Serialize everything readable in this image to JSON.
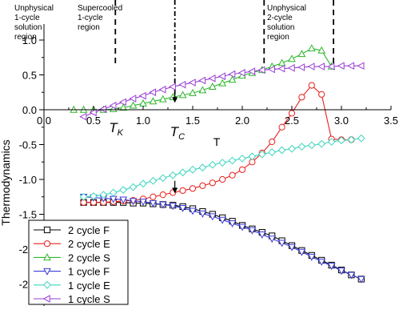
{
  "chart_data": {
    "type": "line",
    "xlabel": "T",
    "ylabel": "Thermodynamics",
    "xlim": [
      0.0,
      3.5
    ],
    "ylim": [
      -2.7,
      1.15
    ],
    "x_ticks": [
      "0.0",
      "0.5",
      "1.0",
      "1.5",
      "2.0",
      "2.5",
      "3.0",
      "3.5"
    ],
    "y_ticks": [
      "1.0",
      "0.5",
      "0.0",
      "-0.5",
      "-1.0",
      "-1.5",
      "-2.0",
      "-2.5"
    ],
    "x_tick_values": [
      0.0,
      0.5,
      1.0,
      1.5,
      2.0,
      2.5,
      3.0,
      3.5
    ],
    "y_tick_values": [
      1.0,
      0.5,
      0.0,
      -0.5,
      -1.0,
      -1.5,
      -2.0,
      -2.5
    ],
    "grid": false,
    "legend_position": "bottom-left",
    "markers": {
      "TK": 0.72,
      "TC": 1.32
    },
    "marker_labels": {
      "TK": "T",
      "TK_sub": "K",
      "TC": "T",
      "TC_sub": "C"
    },
    "vlines": [
      0.72,
      1.32,
      2.22,
      2.92
    ],
    "arrows": [
      {
        "x": 1.32,
        "y_from": 0.25,
        "y_to": 0.1
      },
      {
        "x": 1.32,
        "y_from": -1.02,
        "y_to": -1.2
      }
    ],
    "regions": [
      {
        "lines": [
          "Unphysical",
          "1-cycle",
          "solution",
          "region"
        ]
      },
      {
        "lines": [
          "Supercooled",
          "1-cycle",
          "region"
        ]
      },
      {
        "lines": [
          "Unphysical",
          "2-cycle",
          "solution",
          "region"
        ]
      }
    ],
    "series": [
      {
        "name": "2 cycle F",
        "color": "#000000",
        "marker": "square",
        "x": [
          0.4,
          0.5,
          0.6,
          0.7,
          0.8,
          0.9,
          1.0,
          1.1,
          1.2,
          1.3,
          1.4,
          1.5,
          1.6,
          1.7,
          1.8,
          1.9,
          2.0,
          2.1,
          2.2,
          2.3,
          2.4,
          2.5,
          2.6,
          2.7,
          2.8,
          2.9,
          3.0,
          3.1,
          3.2
        ],
        "y": [
          -1.33,
          -1.33,
          -1.33,
          -1.33,
          -1.33,
          -1.34,
          -1.34,
          -1.35,
          -1.36,
          -1.37,
          -1.39,
          -1.42,
          -1.46,
          -1.5,
          -1.55,
          -1.6,
          -1.66,
          -1.71,
          -1.76,
          -1.81,
          -1.88,
          -1.95,
          -2.02,
          -2.09,
          -2.16,
          -2.23,
          -2.3,
          -2.37,
          -2.43
        ]
      },
      {
        "name": "2 cycle E",
        "color": "#e8201c",
        "marker": "circle",
        "x": [
          0.4,
          0.5,
          0.6,
          0.7,
          0.8,
          0.9,
          1.0,
          1.1,
          1.2,
          1.3,
          1.4,
          1.5,
          1.6,
          1.7,
          1.8,
          1.9,
          2.0,
          2.1,
          2.2,
          2.3,
          2.4,
          2.5,
          2.6,
          2.7,
          2.8,
          2.9,
          3.0,
          3.1
        ],
        "y": [
          -1.33,
          -1.33,
          -1.33,
          -1.32,
          -1.31,
          -1.3,
          -1.28,
          -1.25,
          -1.22,
          -1.19,
          -1.16,
          -1.13,
          -1.09,
          -1.05,
          -1.0,
          -0.94,
          -0.86,
          -0.75,
          -0.62,
          -0.46,
          -0.25,
          -0.05,
          0.18,
          0.35,
          0.22,
          -0.42,
          -0.43,
          -0.43
        ]
      },
      {
        "name": "2 cycle S",
        "color": "#2db82d",
        "marker": "triangle-up",
        "x": [
          0.3,
          0.4,
          0.5,
          0.6,
          0.7,
          0.8,
          0.9,
          1.0,
          1.1,
          1.2,
          1.3,
          1.4,
          1.5,
          1.6,
          1.7,
          1.8,
          1.9,
          2.0,
          2.1,
          2.2,
          2.3,
          2.4,
          2.5,
          2.6,
          2.7,
          2.8,
          2.9
        ],
        "y": [
          0.0,
          0.0,
          0.0,
          0.0,
          0.01,
          0.03,
          0.06,
          0.09,
          0.12,
          0.15,
          0.18,
          0.21,
          0.24,
          0.28,
          0.33,
          0.38,
          0.43,
          0.49,
          0.53,
          0.57,
          0.62,
          0.67,
          0.73,
          0.8,
          0.88,
          0.85,
          0.62
        ]
      },
      {
        "name": "1 cycle F",
        "color": "#3c3cd6",
        "marker": "triangle-down",
        "x": [
          0.4,
          0.5,
          0.6,
          0.7,
          0.8,
          0.9,
          1.0,
          1.1,
          1.2,
          1.3,
          1.4,
          1.5,
          1.6,
          1.7,
          1.8,
          1.9,
          2.0,
          2.1,
          2.2,
          2.3,
          2.4,
          2.5,
          2.6,
          2.7,
          2.8,
          2.9,
          3.0,
          3.1,
          3.2
        ],
        "y": [
          -1.25,
          -1.26,
          -1.27,
          -1.28,
          -1.29,
          -1.31,
          -1.32,
          -1.34,
          -1.36,
          -1.38,
          -1.41,
          -1.45,
          -1.49,
          -1.53,
          -1.58,
          -1.63,
          -1.68,
          -1.73,
          -1.79,
          -1.85,
          -1.91,
          -1.97,
          -2.04,
          -2.11,
          -2.18,
          -2.24,
          -2.31,
          -2.37,
          -2.43
        ]
      },
      {
        "name": "1 cycle E",
        "color": "#3fd6c0",
        "marker": "diamond",
        "x": [
          0.4,
          0.5,
          0.6,
          0.7,
          0.8,
          0.9,
          1.0,
          1.1,
          1.2,
          1.3,
          1.4,
          1.5,
          1.6,
          1.7,
          1.8,
          1.9,
          2.0,
          2.1,
          2.2,
          2.3,
          2.4,
          2.5,
          2.6,
          2.7,
          2.8,
          2.9,
          3.0,
          3.1,
          3.2
        ],
        "y": [
          -1.25,
          -1.24,
          -1.22,
          -1.19,
          -1.15,
          -1.11,
          -1.06,
          -1.02,
          -0.98,
          -0.94,
          -0.9,
          -0.86,
          -0.83,
          -0.79,
          -0.76,
          -0.73,
          -0.7,
          -0.67,
          -0.64,
          -0.61,
          -0.58,
          -0.56,
          -0.53,
          -0.51,
          -0.49,
          -0.46,
          -0.44,
          -0.43,
          -0.41
        ]
      },
      {
        "name": "1 cycle S",
        "color": "#9a3fd6",
        "marker": "triangle-left",
        "x": [
          0.4,
          0.5,
          0.6,
          0.7,
          0.8,
          0.9,
          1.0,
          1.1,
          1.2,
          1.3,
          1.4,
          1.5,
          1.6,
          1.7,
          1.8,
          1.9,
          2.0,
          2.1,
          2.2,
          2.3,
          2.4,
          2.5,
          2.6,
          2.7,
          2.8,
          2.9,
          3.0,
          3.1,
          3.2
        ],
        "y": [
          -0.1,
          -0.04,
          0.01,
          0.06,
          0.11,
          0.16,
          0.2,
          0.25,
          0.29,
          0.33,
          0.36,
          0.39,
          0.42,
          0.45,
          0.48,
          0.51,
          0.53,
          0.55,
          0.57,
          0.58,
          0.59,
          0.6,
          0.61,
          0.62,
          0.62,
          0.62,
          0.63,
          0.63,
          0.63
        ]
      }
    ]
  }
}
